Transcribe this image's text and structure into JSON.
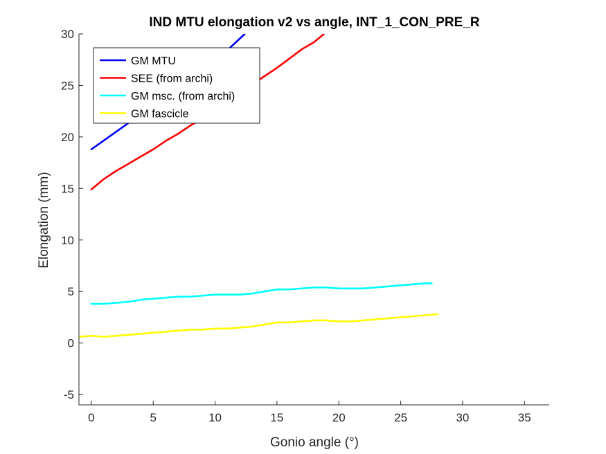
{
  "chart_data": {
    "type": "line",
    "title": "IND MTU elongation v2 vs angle, INT_1_CON_PRE_R",
    "xlabel": "Gonio angle (°)",
    "ylabel": "Elongation (mm)",
    "xlim": [
      -1,
      37
    ],
    "ylim": [
      -6,
      30
    ],
    "xticks": [
      0,
      5,
      10,
      15,
      20,
      25,
      30,
      35
    ],
    "yticks": [
      -5,
      0,
      5,
      10,
      15,
      20,
      25,
      30
    ],
    "grid": false,
    "legend_location": "top-left",
    "series": [
      {
        "name": "GM MTU",
        "color": "#0000ff",
        "x": [
          0,
          2,
          4,
          6,
          8,
          10,
          12.4
        ],
        "y": [
          18.8,
          20.5,
          22.2,
          23.9,
          25.5,
          27.3,
          30.0
        ]
      },
      {
        "name": "SEE (from archi)",
        "color": "#ff0000",
        "x": [
          0,
          1,
          2,
          3,
          4,
          5,
          6,
          7,
          8,
          9,
          10,
          11,
          12,
          13,
          14,
          15,
          16,
          17,
          18,
          18.8
        ],
        "y": [
          14.9,
          15.9,
          16.7,
          17.4,
          18.1,
          18.8,
          19.6,
          20.3,
          21.1,
          21.8,
          22.6,
          23.4,
          24.3,
          25.1,
          25.9,
          26.7,
          27.6,
          28.5,
          29.2,
          30.0
        ]
      },
      {
        "name": "GM msc. (from archi)",
        "color": "#00ffff",
        "x": [
          0,
          1,
          2,
          3,
          4,
          5,
          6,
          7,
          8,
          9,
          10,
          11,
          12,
          13,
          14,
          15,
          16,
          17,
          18,
          19,
          20,
          21,
          22,
          23,
          24,
          25,
          26,
          27,
          27.5
        ],
        "y": [
          3.8,
          3.8,
          3.9,
          4.0,
          4.2,
          4.3,
          4.4,
          4.5,
          4.5,
          4.6,
          4.7,
          4.7,
          4.7,
          4.8,
          5.0,
          5.2,
          5.2,
          5.3,
          5.4,
          5.4,
          5.3,
          5.3,
          5.3,
          5.4,
          5.5,
          5.6,
          5.7,
          5.8,
          5.8
        ]
      },
      {
        "name": "GM fascicle",
        "color": "#ffff00",
        "x": [
          -1,
          0,
          1,
          2,
          3,
          4,
          5,
          6,
          7,
          8,
          9,
          10,
          11,
          12,
          13,
          14,
          15,
          16,
          17,
          18,
          19,
          20,
          21,
          22,
          23,
          24,
          25,
          26,
          27,
          28
        ],
        "y": [
          0.6,
          0.7,
          0.6,
          0.7,
          0.8,
          0.9,
          1.0,
          1.1,
          1.2,
          1.3,
          1.3,
          1.4,
          1.4,
          1.5,
          1.6,
          1.8,
          2.0,
          2.0,
          2.1,
          2.2,
          2.2,
          2.1,
          2.1,
          2.2,
          2.3,
          2.4,
          2.5,
          2.6,
          2.7,
          2.8
        ]
      }
    ]
  }
}
